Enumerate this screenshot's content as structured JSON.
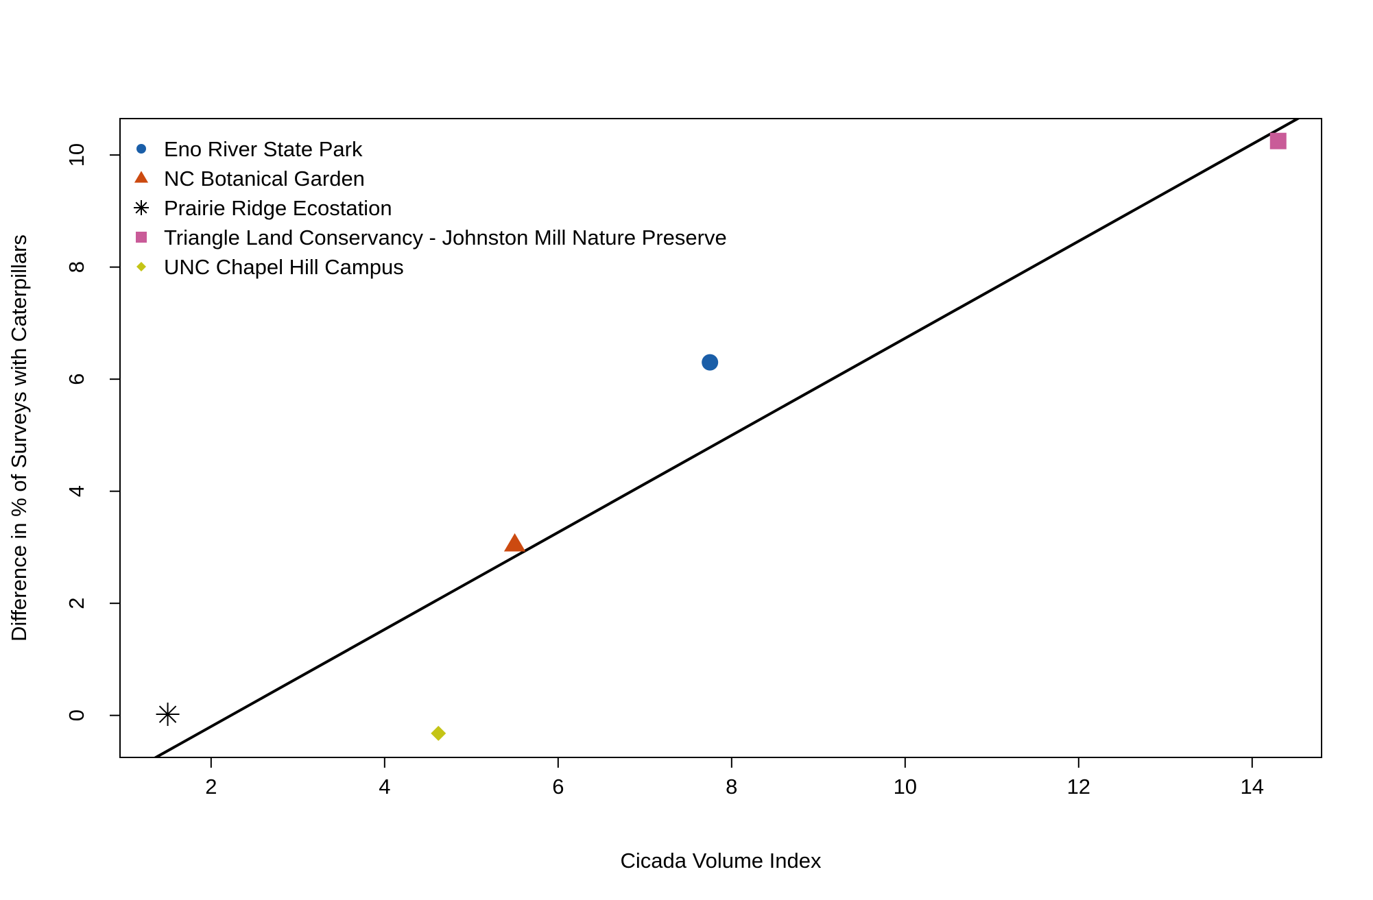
{
  "chart_data": {
    "type": "scatter",
    "title": "",
    "xlabel": "Cicada Volume Index",
    "ylabel": "Difference in  % of Surveys with Caterpillars",
    "xlim": [
      0.95,
      14.8
    ],
    "ylim": [
      -0.75,
      10.65
    ],
    "x_ticks": [
      "2",
      "4",
      "6",
      "8",
      "10",
      "12",
      "14"
    ],
    "y_ticks": [
      "0",
      "2",
      "4",
      "6",
      "8",
      "10"
    ],
    "grid": false,
    "legend_position": "top-left",
    "series": [
      {
        "name": "Eno River State Park",
        "marker": "circle",
        "color": "#1a5ea8",
        "x": 7.75,
        "y": 6.3
      },
      {
        "name": "NC Botanical Garden",
        "marker": "triangle",
        "color": "#cc4a10",
        "x": 5.5,
        "y": 3.05
      },
      {
        "name": "Prairie Ridge Ecostation",
        "marker": "asterisk",
        "color": "#000000",
        "x": 1.5,
        "y": 0.02
      },
      {
        "name": "Triangle Land Conservancy - Johnston Mill Nature Preserve",
        "marker": "square",
        "color": "#c95b98",
        "x": 14.3,
        "y": 10.25
      },
      {
        "name": "UNC Chapel Hill Campus",
        "marker": "diamond",
        "color": "#c4c416",
        "x": 4.62,
        "y": -0.32
      }
    ],
    "fit_line": {
      "intercept": -1.93,
      "slope": 0.866,
      "color": "#000000"
    }
  }
}
